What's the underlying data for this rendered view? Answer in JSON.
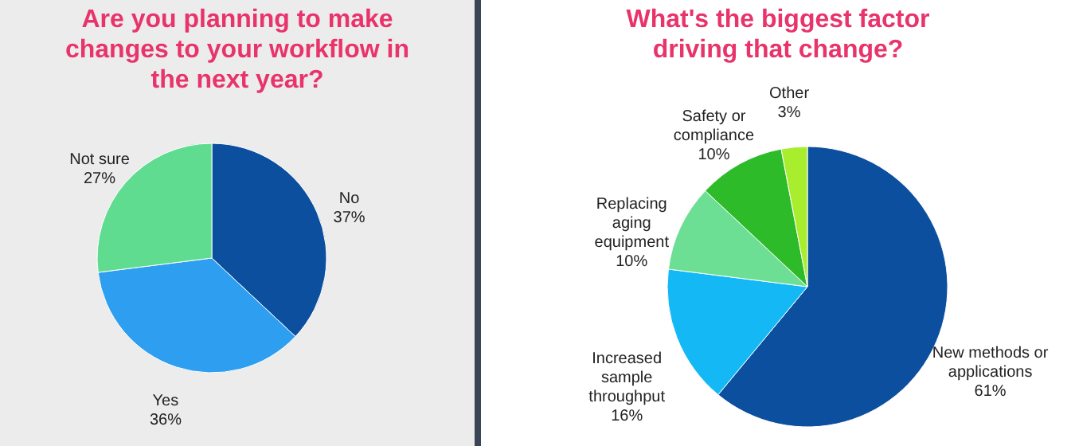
{
  "chart_data": [
    {
      "type": "pie",
      "title": "Are you planning to make changes to your workflow in the next year?",
      "categories": [
        "No",
        "Yes",
        "Not sure"
      ],
      "values": [
        37,
        36,
        27
      ],
      "value_labels": [
        "37%",
        "36%",
        "27%"
      ],
      "colors": [
        "#0b4f9e",
        "#2e9ef0",
        "#5fdc8f"
      ],
      "legend": false
    },
    {
      "type": "pie",
      "title": "What's the biggest factor driving that change?",
      "categories": [
        "New methods or applications",
        "Increased sample throughput",
        "Replacing aging equipment",
        "Safety or compliance",
        "Other"
      ],
      "values": [
        61,
        16,
        10,
        10,
        3
      ],
      "value_labels": [
        "61%",
        "16%",
        "10%",
        "10%",
        "3%"
      ],
      "colors": [
        "#0b4f9e",
        "#14b8f5",
        "#6ddf94",
        "#2dbb2a",
        "#a8ee2e"
      ],
      "legend": false
    }
  ]
}
